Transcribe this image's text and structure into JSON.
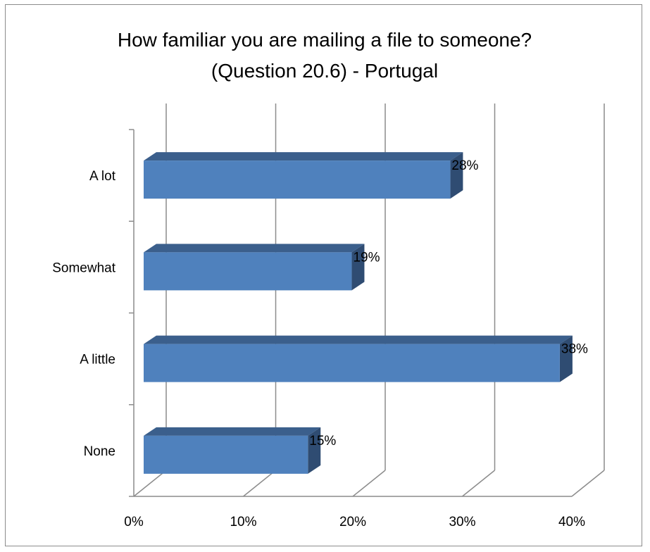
{
  "chart_data": {
    "type": "bar",
    "orientation": "horizontal",
    "three_d": true,
    "title_lines": [
      "How familiar you are mailing a file to someone?",
      "(Question 20.6) - Portugal"
    ],
    "categories": [
      "A lot",
      "Somewhat",
      "A little",
      "None"
    ],
    "values": [
      28,
      19,
      38,
      15
    ],
    "data_labels": [
      "28%",
      "19%",
      "38%",
      "15%"
    ],
    "xlim": [
      0,
      40
    ],
    "x_ticks": [
      "0%",
      "10%",
      "20%",
      "30%",
      "40%"
    ],
    "x_tick_values": [
      0,
      10,
      20,
      30,
      40
    ],
    "grid": true,
    "legend": "none",
    "colors": {
      "bar_front": "#4f81bd",
      "bar_top": "#3b5f8c",
      "bar_side": "#2f4c72",
      "grid": "#8c8c8c"
    }
  }
}
